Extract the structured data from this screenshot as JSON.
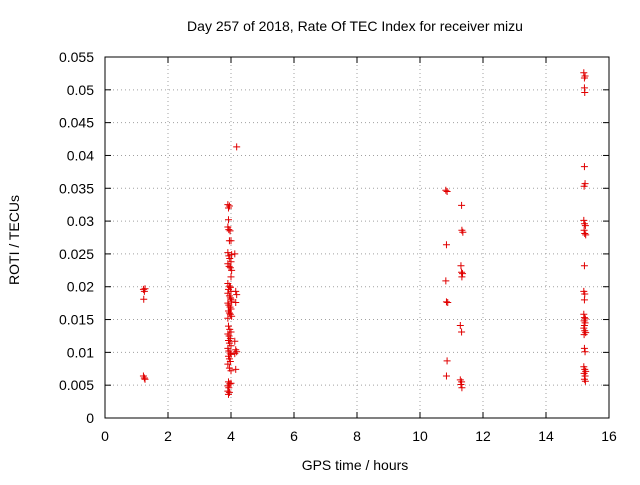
{
  "chart_data": {
    "type": "scatter",
    "title": "Day 257 of 2018, Rate Of TEC Index for receiver mizu",
    "xlabel": "GPS time / hours",
    "ylabel": "ROTI / TECUs",
    "xlim": [
      0,
      16
    ],
    "ylim": [
      0,
      0.055
    ],
    "x_ticks": [
      0,
      2,
      4,
      6,
      8,
      10,
      12,
      14,
      16
    ],
    "x_tick_labels": [
      "0",
      "2",
      "4",
      "6",
      "8",
      "10",
      "12",
      "14",
      "16"
    ],
    "y_ticks": [
      0,
      0.005,
      0.01,
      0.015,
      0.02,
      0.025,
      0.03,
      0.035,
      0.04,
      0.045,
      0.05,
      0.055
    ],
    "y_tick_labels": [
      "0",
      "0.005",
      "0.01",
      "0.015",
      "0.02",
      "0.025",
      "0.03",
      "0.035",
      "0.04",
      "0.045",
      "0.05",
      "0.055"
    ],
    "grid": true,
    "marker": "+",
    "colors": {
      "points": "#e00000",
      "grid": "#a0a0a0",
      "axis": "#000000"
    },
    "series": [
      {
        "name": "ROTI",
        "points": [
          [
            1.22,
            0.0196
          ],
          [
            1.25,
            0.0193
          ],
          [
            1.27,
            0.0197
          ],
          [
            1.23,
            0.0181
          ],
          [
            1.22,
            0.0064
          ],
          [
            1.25,
            0.0061
          ],
          [
            1.27,
            0.0059
          ],
          [
            3.9,
            0.0325
          ],
          [
            3.92,
            0.032
          ],
          [
            3.95,
            0.0323
          ],
          [
            3.92,
            0.0302
          ],
          [
            3.9,
            0.0291
          ],
          [
            3.93,
            0.0287
          ],
          [
            3.97,
            0.0285
          ],
          [
            3.95,
            0.027
          ],
          [
            4.0,
            0.027
          ],
          [
            3.9,
            0.0252
          ],
          [
            3.93,
            0.0247
          ],
          [
            3.96,
            0.0243
          ],
          [
            4.0,
            0.0238
          ],
          [
            4.02,
            0.0249
          ],
          [
            3.9,
            0.0235
          ],
          [
            3.94,
            0.0231
          ],
          [
            3.98,
            0.0229
          ],
          [
            4.02,
            0.0225
          ],
          [
            4.0,
            0.0215
          ],
          [
            3.9,
            0.0205
          ],
          [
            3.95,
            0.0201
          ],
          [
            3.98,
            0.0199
          ],
          [
            3.92,
            0.0196
          ],
          [
            4.0,
            0.0193
          ],
          [
            3.9,
            0.019
          ],
          [
            3.95,
            0.0186
          ],
          [
            3.98,
            0.0183
          ],
          [
            4.0,
            0.0181
          ],
          [
            4.02,
            0.0178
          ],
          [
            3.9,
            0.0175
          ],
          [
            3.93,
            0.0172
          ],
          [
            3.97,
            0.0169
          ],
          [
            4.0,
            0.0166
          ],
          [
            3.92,
            0.0163
          ],
          [
            3.95,
            0.016
          ],
          [
            3.98,
            0.0158
          ],
          [
            4.02,
            0.0155
          ],
          [
            3.9,
            0.0152
          ],
          [
            3.92,
            0.014
          ],
          [
            3.96,
            0.0135
          ],
          [
            4.0,
            0.0131
          ],
          [
            3.9,
            0.0128
          ],
          [
            3.94,
            0.0125
          ],
          [
            3.98,
            0.0121
          ],
          [
            3.92,
            0.0118
          ],
          [
            3.95,
            0.0114
          ],
          [
            4.0,
            0.011
          ],
          [
            3.9,
            0.0106
          ],
          [
            3.93,
            0.0102
          ],
          [
            3.97,
            0.0099
          ],
          [
            4.0,
            0.0097
          ],
          [
            3.92,
            0.0094
          ],
          [
            3.95,
            0.009
          ],
          [
            3.98,
            0.0086
          ],
          [
            3.9,
            0.0082
          ],
          [
            3.95,
            0.0076
          ],
          [
            4.0,
            0.0072
          ],
          [
            3.92,
            0.0055
          ],
          [
            3.96,
            0.0052
          ],
          [
            4.0,
            0.0053
          ],
          [
            3.9,
            0.0049
          ],
          [
            3.93,
            0.0046
          ],
          [
            3.9,
            0.0041
          ],
          [
            3.95,
            0.0039
          ],
          [
            3.92,
            0.0036
          ],
          [
            4.18,
            0.0413
          ],
          [
            4.12,
            0.025
          ],
          [
            4.15,
            0.0193
          ],
          [
            4.18,
            0.0188
          ],
          [
            4.15,
            0.0176
          ],
          [
            4.12,
            0.0117
          ],
          [
            4.15,
            0.0104
          ],
          [
            4.18,
            0.0101
          ],
          [
            4.12,
            0.0098
          ],
          [
            4.15,
            0.0074
          ],
          [
            10.82,
            0.0347
          ],
          [
            10.86,
            0.0345
          ],
          [
            10.84,
            0.0264
          ],
          [
            10.82,
            0.0209
          ],
          [
            10.84,
            0.0177
          ],
          [
            10.88,
            0.0176
          ],
          [
            10.86,
            0.0087
          ],
          [
            10.84,
            0.0064
          ],
          [
            11.32,
            0.0324
          ],
          [
            11.33,
            0.0286
          ],
          [
            11.36,
            0.0283
          ],
          [
            11.3,
            0.0232
          ],
          [
            11.32,
            0.0222
          ],
          [
            11.35,
            0.022
          ],
          [
            11.33,
            0.0215
          ],
          [
            11.28,
            0.0141
          ],
          [
            11.32,
            0.0131
          ],
          [
            11.28,
            0.0058
          ],
          [
            11.32,
            0.0055
          ],
          [
            11.3,
            0.0051
          ],
          [
            11.33,
            0.0046
          ],
          [
            15.2,
            0.0526
          ],
          [
            15.22,
            0.0518
          ],
          [
            15.24,
            0.0521
          ],
          [
            15.22,
            0.0503
          ],
          [
            15.23,
            0.0496
          ],
          [
            15.22,
            0.0383
          ],
          [
            15.24,
            0.0357
          ],
          [
            15.21,
            0.0353
          ],
          [
            15.2,
            0.0301
          ],
          [
            15.22,
            0.0296
          ],
          [
            15.25,
            0.0293
          ],
          [
            15.21,
            0.0286
          ],
          [
            15.23,
            0.0281
          ],
          [
            15.26,
            0.0279
          ],
          [
            15.22,
            0.0232
          ],
          [
            15.2,
            0.0193
          ],
          [
            15.23,
            0.0189
          ],
          [
            15.22,
            0.018
          ],
          [
            15.2,
            0.0158
          ],
          [
            15.22,
            0.0153
          ],
          [
            15.25,
            0.0151
          ],
          [
            15.21,
            0.0148
          ],
          [
            15.24,
            0.0145
          ],
          [
            15.22,
            0.0141
          ],
          [
            15.2,
            0.0137
          ],
          [
            15.23,
            0.0133
          ],
          [
            15.26,
            0.013
          ],
          [
            15.21,
            0.0127
          ],
          [
            15.22,
            0.0106
          ],
          [
            15.24,
            0.0101
          ],
          [
            15.2,
            0.0078
          ],
          [
            15.23,
            0.0074
          ],
          [
            15.26,
            0.0071
          ],
          [
            15.21,
            0.0068
          ],
          [
            15.24,
            0.0064
          ],
          [
            15.22,
            0.0059
          ],
          [
            15.25,
            0.0056
          ]
        ]
      }
    ]
  }
}
